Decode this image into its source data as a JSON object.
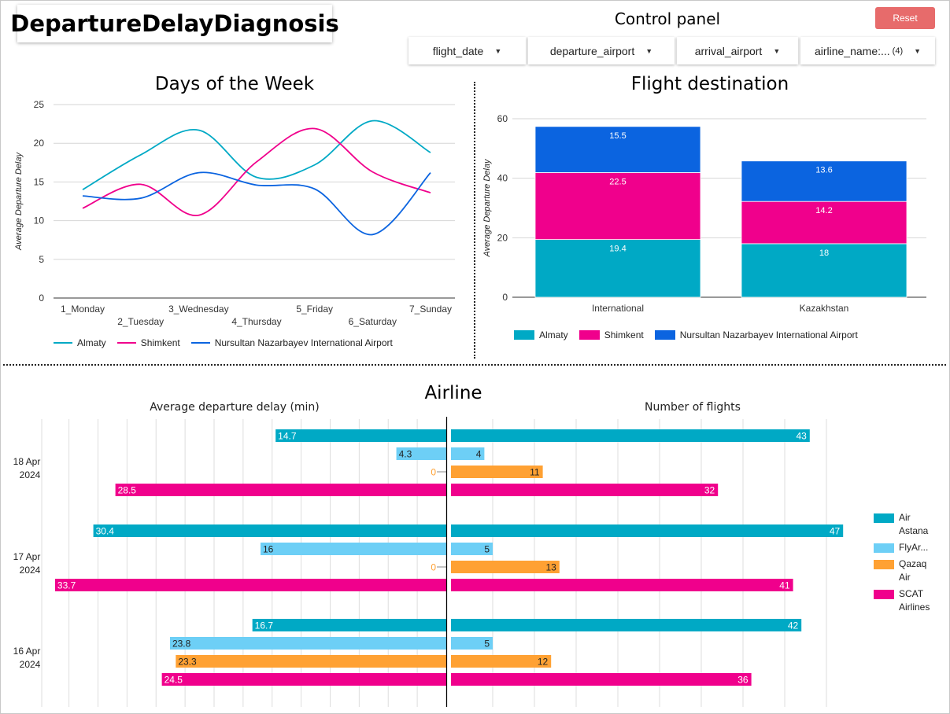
{
  "header": {
    "title": "DepartureDelayDiagnosis",
    "control_panel_title": "Control panel",
    "reset_label": "Reset",
    "filters": [
      {
        "label": "flight_date"
      },
      {
        "label": "departure_airport"
      },
      {
        "label": "arrival_airport"
      },
      {
        "label": "airline_name:...",
        "badge": "(4)"
      }
    ],
    "dropdown_icon": "caret-down-icon"
  },
  "colors": {
    "almaty": "#00a9c5",
    "shimkent": "#f0008c",
    "nursultan": "#0b64e0",
    "air_astana": "#00a9c5",
    "flyarystan": "#6dcff6",
    "qazaq_air": "#ffa133",
    "scat": "#f0008c",
    "reset": "#e76b6b"
  },
  "chart_data": [
    {
      "type": "line",
      "title": "Days of the Week",
      "ylabel": "Average Departure Delay",
      "ylim": [
        0,
        25
      ],
      "yticks": [
        0,
        5,
        10,
        15,
        20,
        25
      ],
      "categories": [
        "1_Monday",
        "2_Tuesday",
        "3_Wednesday",
        "4_Thursday",
        "5_Friday",
        "6_Saturday",
        "7_Sunday"
      ],
      "series": [
        {
          "name": "Almaty",
          "values": [
            14.0,
            18.5,
            21.7,
            15.6,
            17.2,
            22.9,
            18.8
          ]
        },
        {
          "name": "Shimkent",
          "values": [
            11.6,
            14.7,
            10.7,
            17.6,
            21.9,
            16.3,
            13.6
          ]
        },
        {
          "name": "Nursultan Nazarbayev International Airport",
          "values": [
            13.2,
            12.9,
            16.2,
            14.6,
            14.1,
            8.2,
            16.2
          ]
        }
      ],
      "legend": "bottom"
    },
    {
      "type": "bar",
      "stacked": true,
      "title": "Flight destination",
      "ylabel": "Average Departure Delay",
      "ylim": [
        0,
        60
      ],
      "yticks": [
        0,
        20,
        40,
        60
      ],
      "categories": [
        "International",
        "Kazakhstan"
      ],
      "series": [
        {
          "name": "Almaty",
          "values": [
            19.4,
            18
          ],
          "labels": [
            "19.4",
            "18"
          ]
        },
        {
          "name": "Shimkent",
          "values": [
            22.5,
            14.2
          ],
          "labels": [
            "22.5",
            "14.2"
          ]
        },
        {
          "name": "Nursultan Nazarbayev International Airport",
          "values": [
            15.5,
            13.6
          ],
          "labels": [
            "15.5",
            "13.6"
          ]
        }
      ],
      "legend": "bottom"
    },
    {
      "type": "bar",
      "orientation": "horizontal",
      "title": "Airline",
      "left_title": "Average departure delay (min)",
      "right_title": "Number of flights",
      "groups": [
        {
          "label_line1": "18 Apr",
          "label_line2": "2024",
          "delay": [
            14.7,
            4.3,
            0,
            28.5
          ],
          "delay_labels": [
            "14.7",
            "4.3",
            "0",
            "28.5"
          ],
          "flights": [
            43,
            4,
            11,
            32
          ]
        },
        {
          "label_line1": "17 Apr",
          "label_line2": "2024",
          "delay": [
            30.4,
            16,
            0,
            33.7
          ],
          "delay_labels": [
            "30.4",
            "16",
            "0",
            "33.7"
          ],
          "flights": [
            47,
            5,
            13,
            41
          ]
        },
        {
          "label_line1": "16 Apr",
          "label_line2": "2024",
          "delay": [
            16.7,
            23.8,
            23.3,
            24.5
          ],
          "delay_labels": [
            "16.7",
            "23.8",
            "23.3",
            "24.5"
          ],
          "flights": [
            42,
            5,
            12,
            36
          ]
        }
      ],
      "series_names": [
        "Air Astana",
        "FlyAr...",
        "Qazaq Air",
        "SCAT Airlines"
      ],
      "legend_labels": [
        [
          "Air",
          "Astana"
        ],
        [
          "FlyAr..."
        ],
        [
          "Qazaq",
          "Air"
        ],
        [
          "SCAT",
          "Airlines"
        ]
      ],
      "legend": "right"
    }
  ]
}
